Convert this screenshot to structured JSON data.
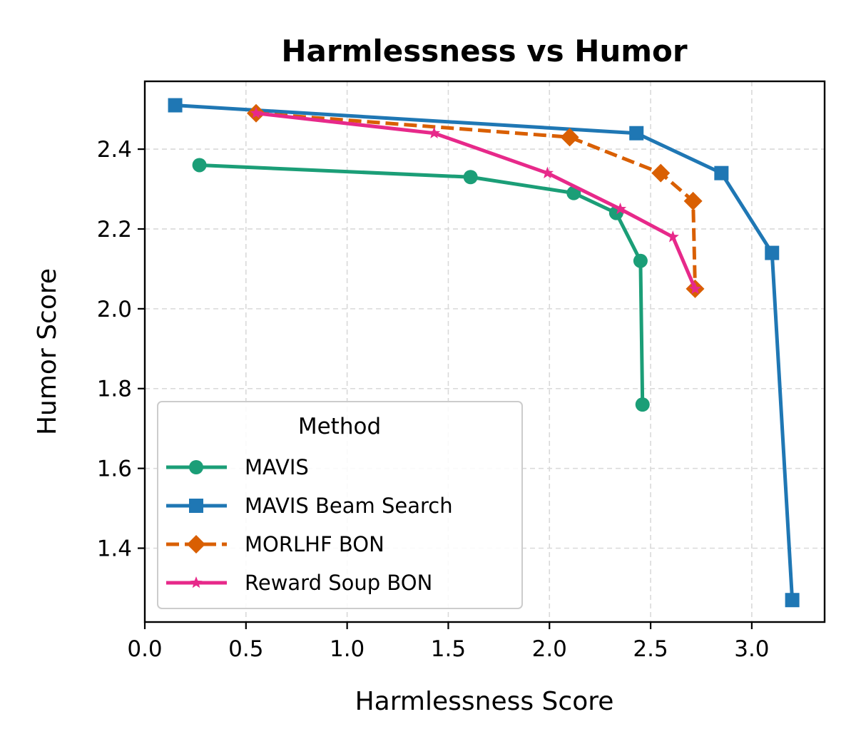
{
  "chart_data": {
    "type": "line",
    "title": "Harmlessness vs Humor",
    "xlabel": "Harmlessness Score",
    "ylabel": "Humor Score",
    "xlim": [
      0.0,
      3.36
    ],
    "ylim": [
      1.215,
      2.57
    ],
    "xticks": [
      0.0,
      0.5,
      1.0,
      1.5,
      2.0,
      2.5,
      3.0
    ],
    "xtick_labels": [
      "0.0",
      "0.5",
      "1.0",
      "1.5",
      "2.0",
      "2.5",
      "3.0"
    ],
    "yticks": [
      1.4,
      1.6,
      1.8,
      2.0,
      2.2,
      2.4
    ],
    "ytick_labels": [
      "1.4",
      "1.6",
      "1.8",
      "2.0",
      "2.2",
      "2.4"
    ],
    "grid": true,
    "legend": {
      "title": "Method",
      "placement": "lower-left"
    },
    "series": [
      {
        "name": "MAVIS",
        "color": "#1b9e77",
        "marker": "circle",
        "dash": "solid",
        "x": [
          0.27,
          1.61,
          2.12,
          2.33,
          2.45,
          2.46
        ],
        "y": [
          2.36,
          2.33,
          2.29,
          2.24,
          2.12,
          1.76
        ]
      },
      {
        "name": "MAVIS Beam Search",
        "color": "#1f77b4",
        "marker": "square",
        "dash": "solid",
        "x": [
          0.15,
          2.43,
          2.85,
          3.1,
          3.2
        ],
        "y": [
          2.51,
          2.44,
          2.34,
          2.14,
          1.27
        ]
      },
      {
        "name": "MORLHF BON",
        "color": "#d95f02",
        "marker": "diamond",
        "dash": "dashed",
        "x": [
          0.55,
          2.1,
          2.55,
          2.71,
          2.72
        ],
        "y": [
          2.49,
          2.43,
          2.34,
          2.27,
          2.05
        ]
      },
      {
        "name": "Reward Soup BON",
        "color": "#e7298a",
        "marker": "star",
        "dash": "solid",
        "x": [
          0.55,
          1.43,
          1.99,
          2.35,
          2.61,
          2.72
        ],
        "y": [
          2.49,
          2.44,
          2.34,
          2.25,
          2.18,
          2.05
        ]
      }
    ]
  }
}
